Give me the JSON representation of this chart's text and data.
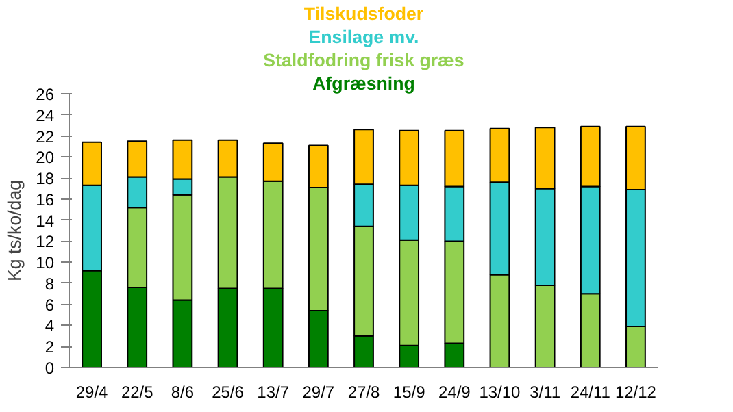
{
  "chart_data": {
    "type": "bar",
    "stacked": true,
    "ylabel": "Kg ts/ko/dag",
    "categories": [
      "29/4",
      "22/5",
      "8/6",
      "25/6",
      "13/7",
      "29/7",
      "27/8",
      "15/9",
      "24/9",
      "13/10",
      "3/11",
      "24/11",
      "12/12"
    ],
    "series": [
      {
        "name": "Afgræsning",
        "color": "#008000",
        "values": [
          9.2,
          7.6,
          6.4,
          7.5,
          7.5,
          5.4,
          3.0,
          2.1,
          2.3,
          0,
          0,
          0,
          0
        ]
      },
      {
        "name": "Staldfodring frisk græs",
        "color": "#92d050",
        "values": [
          0,
          7.6,
          10.0,
          10.6,
          10.2,
          11.7,
          10.4,
          10.0,
          9.7,
          8.8,
          7.8,
          7.0,
          3.9
        ]
      },
      {
        "name": "Ensilage mv.",
        "color": "#33cccc",
        "values": [
          8.1,
          2.9,
          1.5,
          0,
          0,
          0,
          4.0,
          5.2,
          5.2,
          8.8,
          9.2,
          10.2,
          13.0
        ]
      },
      {
        "name": "Tilskudsfoder",
        "color": "#ffc000",
        "values": [
          4.1,
          3.4,
          3.7,
          3.5,
          3.6,
          4.0,
          5.2,
          5.2,
          5.3,
          5.1,
          5.8,
          5.7,
          6.0
        ]
      }
    ],
    "ylim": [
      0,
      26
    ],
    "yticks": [
      0,
      2,
      4,
      6,
      8,
      10,
      12,
      14,
      16,
      18,
      20,
      22,
      24,
      26
    ],
    "grid": false,
    "legend": "top"
  }
}
